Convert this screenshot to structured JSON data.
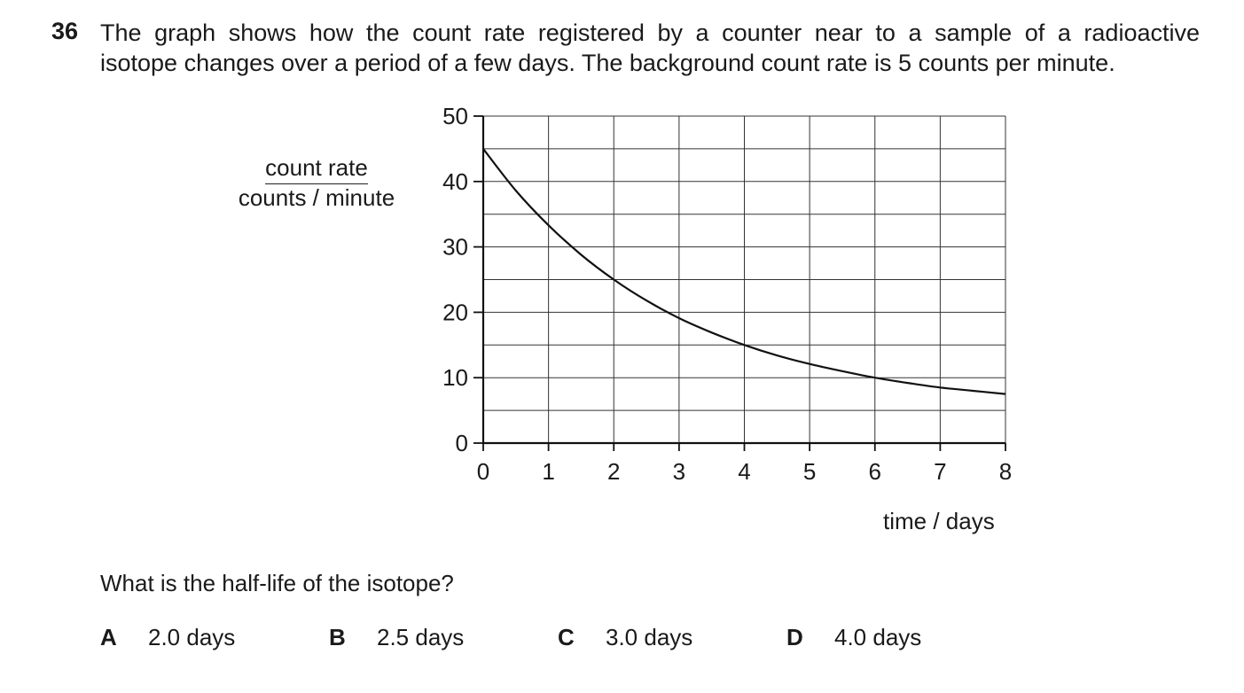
{
  "question": {
    "number": "36",
    "stem_line1": "The graph shows how the count rate registered by a counter near to a sample of a radioactive",
    "stem_line2": "isotope changes over a period of a few days. The background count rate is 5 counts per minute.",
    "prompt": "What is the half-life of the isotope?",
    "options": [
      {
        "letter": "A",
        "text": "2.0 days"
      },
      {
        "letter": "B",
        "text": "2.5 days"
      },
      {
        "letter": "C",
        "text": "3.0 days"
      },
      {
        "letter": "D",
        "text": "4.0 days"
      }
    ]
  },
  "chart_data": {
    "type": "line",
    "title": "",
    "xlabel": "time / days",
    "ylabel_numerator": "count rate",
    "ylabel_denominator": "counts / minute",
    "xlim": [
      0,
      8
    ],
    "ylim": [
      0,
      50
    ],
    "x_ticks": [
      0,
      1,
      2,
      3,
      4,
      5,
      6,
      7,
      8
    ],
    "y_ticks": [
      0,
      10,
      20,
      30,
      40,
      50
    ],
    "grid": true,
    "grid_minor_y_step": 5,
    "series": [
      {
        "x": [
          0,
          0.5,
          1,
          1.5,
          2,
          2.5,
          3,
          3.5,
          4,
          4.5,
          5,
          5.5,
          6,
          6.5,
          7,
          7.5,
          8
        ],
        "y": [
          45,
          38.6,
          33.3,
          28.8,
          25,
          21.8,
          19.1,
          16.9,
          15,
          13.4,
          12.1,
          11,
          10,
          9.2,
          8.5,
          8,
          7.5
        ]
      }
    ]
  }
}
